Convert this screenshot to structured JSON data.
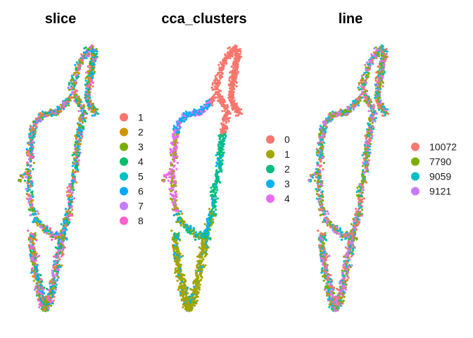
{
  "chart_data": [
    {
      "type": "scatter",
      "title": "slice",
      "xlabel": "",
      "ylabel": "",
      "color_by": "slice",
      "legend_position": "right",
      "grid": false,
      "point_count_estimate": 2200,
      "series": [
        {
          "name": "1",
          "color": "#F8766D"
        },
        {
          "name": "2",
          "color": "#CD9600"
        },
        {
          "name": "3",
          "color": "#7CAE00"
        },
        {
          "name": "4",
          "color": "#00BE67"
        },
        {
          "name": "5",
          "color": "#00BFC4"
        },
        {
          "name": "6",
          "color": "#00A9FF"
        },
        {
          "name": "7",
          "color": "#C77CFF"
        },
        {
          "name": "8",
          "color": "#FF61CC"
        }
      ]
    },
    {
      "type": "scatter",
      "title": "cca_clusters",
      "xlabel": "",
      "ylabel": "",
      "color_by": "cca_clusters",
      "legend_position": "right",
      "grid": false,
      "point_count_estimate": 2200,
      "series": [
        {
          "name": "0",
          "color": "#F8766D"
        },
        {
          "name": "1",
          "color": "#A3A500"
        },
        {
          "name": "2",
          "color": "#00BF7D"
        },
        {
          "name": "3",
          "color": "#00B0F6"
        },
        {
          "name": "4",
          "color": "#E76BF3"
        }
      ]
    },
    {
      "type": "scatter",
      "title": "line",
      "xlabel": "",
      "ylabel": "",
      "color_by": "line",
      "legend_position": "right",
      "grid": false,
      "point_count_estimate": 2200,
      "series": [
        {
          "name": "10072",
          "color": "#F8766D"
        },
        {
          "name": "7790",
          "color": "#7CAE00"
        },
        {
          "name": "9059",
          "color": "#00BFC4"
        },
        {
          "name": "9121",
          "color": "#C77CFF"
        }
      ]
    }
  ]
}
